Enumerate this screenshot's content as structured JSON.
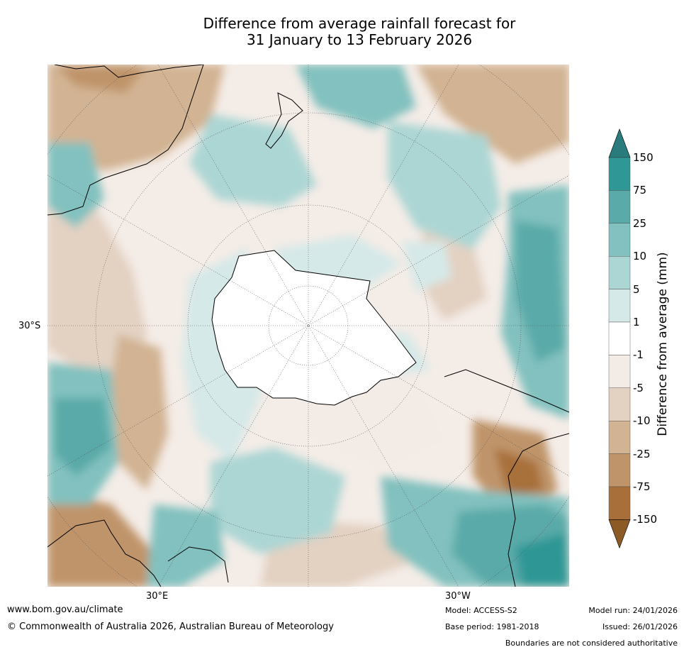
{
  "title_line1": "Difference from average rainfall forecast for",
  "title_line2": "31 January to 13 February 2026",
  "map_labels": {
    "lat_30s": "30°S",
    "lon_30e": "30°E",
    "lon_30w": "30°W"
  },
  "colorbar": {
    "label": "Difference from average (mm)",
    "ticks": [
      "150",
      "75",
      "25",
      "10",
      "5",
      "1",
      "-1",
      "-5",
      "-10",
      "-25",
      "-75",
      "-150"
    ],
    "colors": [
      "#2a7c7c",
      "#2f9795",
      "#5aaaa9",
      "#82c1bf",
      "#acd6d4",
      "#d5e9e8",
      "#ffffff",
      "#f3ebe6",
      "#e3d1c2",
      "#d2b393",
      "#c0946a",
      "#a86f3b",
      "#8c5a24"
    ]
  },
  "footer": {
    "url": "www.bom.gov.au/climate",
    "copyright": "© Commonwealth of Australia 2026, Australian Bureau of Meteorology",
    "model": "Model: ACCESS-S2",
    "base_period": "Base period: 1981-2018",
    "model_run": "Model run: 24/01/2026",
    "issued": "Issued: 26/01/2026",
    "disclaimer": "Boundaries are not considered authoritative"
  }
}
